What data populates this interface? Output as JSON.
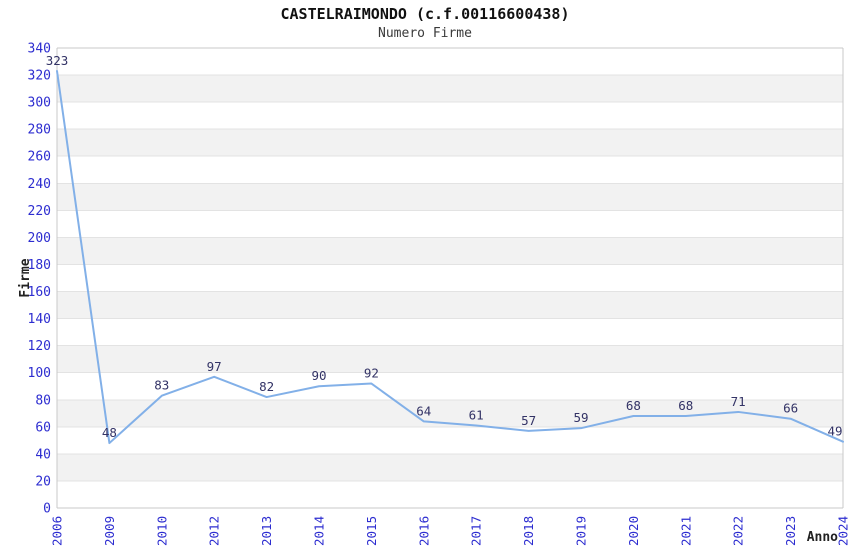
{
  "header": {
    "title": "CASTELRAIMONDO (c.f.00116600438)",
    "subtitle": "Numero Firme"
  },
  "chart_data": {
    "type": "line",
    "title": "CASTELRAIMONDO (c.f.00116600438)",
    "subtitle": "Numero Firme",
    "xlabel": "Anno",
    "ylabel": "Firme",
    "categories": [
      "2006",
      "2009",
      "2010",
      "2012",
      "2013",
      "2014",
      "2015",
      "2016",
      "2017",
      "2018",
      "2019",
      "2020",
      "2021",
      "2022",
      "2023",
      "2024"
    ],
    "values": [
      323,
      48,
      83,
      97,
      82,
      90,
      92,
      64,
      61,
      57,
      59,
      68,
      68,
      71,
      66,
      49
    ],
    "ylim": [
      0,
      340
    ],
    "ytick_step": 20,
    "yticks": [
      0,
      20,
      40,
      60,
      80,
      100,
      120,
      140,
      160,
      180,
      200,
      220,
      240,
      260,
      280,
      300,
      320,
      340
    ],
    "grid": "horizontal",
    "banded_background": true,
    "legend": "none",
    "colors": {
      "line": "#82b0e8",
      "band": "#f2f2f2",
      "grid": "#e3e3e3",
      "axis_border": "#c9c9c9",
      "tick_label": "#2d2dd0",
      "data_label": "#333366",
      "axis_title": "#222222"
    }
  }
}
